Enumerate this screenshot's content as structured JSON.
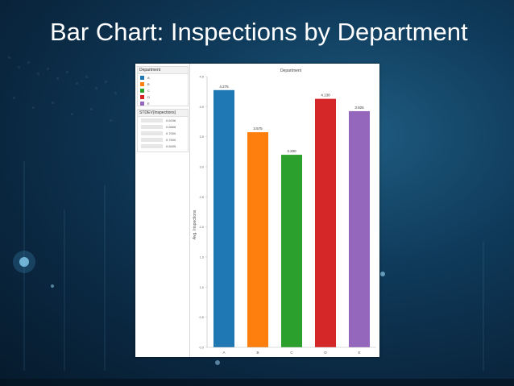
{
  "slide": {
    "title": "Bar Chart: Inspections by Department"
  },
  "legend": {
    "title": "Department",
    "items": [
      {
        "label": "A",
        "color": "#1f77b4"
      },
      {
        "label": "B",
        "color": "#ff7f0e"
      },
      {
        "label": "C",
        "color": "#2ca02c"
      },
      {
        "label": "D",
        "color": "#d62728"
      },
      {
        "label": "E",
        "color": "#9467bd"
      }
    ]
  },
  "stdev": {
    "title": "STDEV(Inspections)",
    "values": [
      "0.6196",
      "0.6668",
      "0.7000",
      "0.7500",
      "0.6405"
    ]
  },
  "chart_data": {
    "type": "bar",
    "title": "Department",
    "xlabel": "",
    "ylabel": "Avg. Inspections",
    "categories": [
      "A",
      "B",
      "C",
      "D",
      "E"
    ],
    "values": [
      4.275,
      3.575,
      3.2,
      4.13,
      3.925
    ],
    "value_labels": [
      "4.275",
      "3.575",
      "3.200",
      "4.130",
      "3.925"
    ],
    "colors": [
      "#1f77b4",
      "#ff7f0e",
      "#2ca02c",
      "#d62728",
      "#9467bd"
    ],
    "ylim": [
      0,
      4.5
    ],
    "yticks": [
      "0.0",
      "0.5",
      "1.0",
      "1.5",
      "2.0",
      "2.5",
      "3.0",
      "3.5",
      "4.0",
      "4.5"
    ],
    "grid": false,
    "legend": "left"
  }
}
